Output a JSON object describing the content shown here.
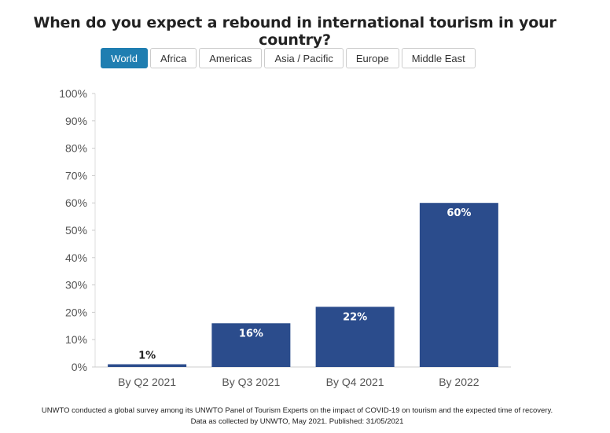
{
  "title": "When do you expect a rebound in international tourism in your country?",
  "tabs": [
    {
      "label": "World",
      "active": true
    },
    {
      "label": "Africa",
      "active": false
    },
    {
      "label": "Americas",
      "active": false
    },
    {
      "label": "Asia / Pacific",
      "active": false
    },
    {
      "label": "Europe",
      "active": false
    },
    {
      "label": "Middle East",
      "active": false
    }
  ],
  "chart_data": {
    "type": "bar",
    "categories": [
      "By Q2 2021",
      "By Q3 2021",
      "By Q4 2021",
      "By 2022"
    ],
    "values": [
      1,
      16,
      22,
      60
    ],
    "data_labels": [
      "1%",
      "16%",
      "22%",
      "60%"
    ],
    "ylim": [
      0,
      100
    ],
    "yticks": [
      0,
      10,
      20,
      30,
      40,
      50,
      60,
      70,
      80,
      90,
      100
    ],
    "ytick_labels": [
      "0%",
      "10%",
      "20%",
      "30%",
      "40%",
      "50%",
      "60%",
      "70%",
      "80%",
      "90%",
      "100%"
    ],
    "bar_color": "#2b4c8c",
    "grid": false
  },
  "footer": {
    "line1": "UNWTO conducted a global survey among its UNWTO Panel of Tourism Experts on the impact of COVID-19 on tourism and the expected time of recovery.",
    "line2": "Data as collected by UNWTO, May 2021. Published: 31/05/2021"
  }
}
